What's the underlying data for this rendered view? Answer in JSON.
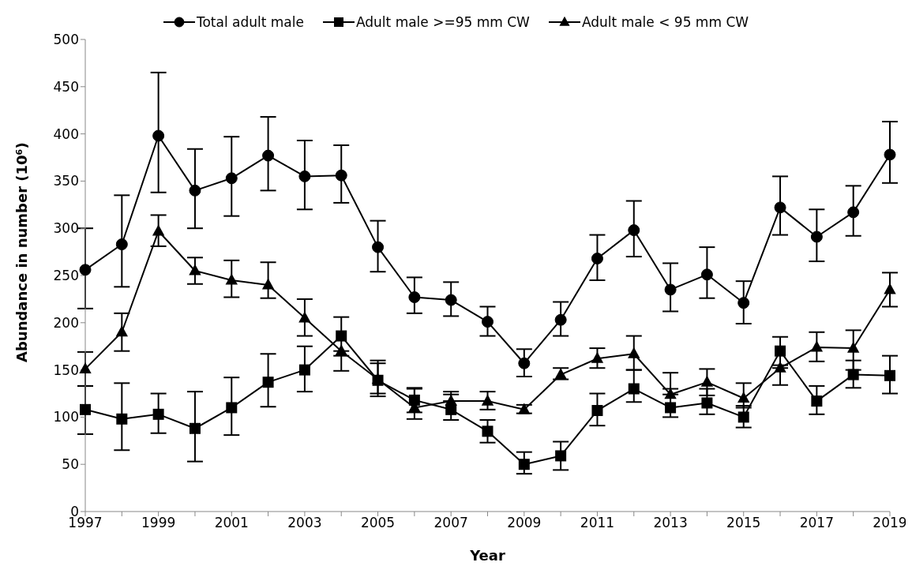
{
  "chart_data": {
    "type": "line",
    "xlabel": "Year",
    "ylabel": "Abundance in number (10⁶)",
    "categories": [
      "1997",
      null,
      "1999",
      null,
      "2001",
      null,
      "2003",
      null,
      "2005",
      null,
      "2007",
      null,
      "2009",
      null,
      "2011",
      null,
      "2013",
      null,
      "2015",
      null,
      "2017",
      null,
      "2019"
    ],
    "ylim": [
      0,
      500
    ],
    "yticks": [
      0,
      50,
      100,
      150,
      200,
      250,
      300,
      350,
      400,
      450,
      500
    ],
    "legend": "top",
    "line_style": "solid",
    "series": [
      {
        "name": "Total adult male",
        "color": "#000000",
        "marker": "circle",
        "values": [
          256,
          283,
          398,
          340,
          353,
          377,
          355,
          356,
          280,
          227,
          224,
          201,
          157,
          203,
          268,
          298,
          235,
          251,
          221,
          322,
          291,
          317,
          378
        ],
        "errors": [
          [
            215,
            300
          ],
          [
            238,
            335
          ],
          [
            338,
            465
          ],
          [
            300,
            384
          ],
          [
            313,
            397
          ],
          [
            340,
            418
          ],
          [
            320,
            393
          ],
          [
            327,
            388
          ],
          [
            254,
            308
          ],
          [
            210,
            248
          ],
          [
            207,
            243
          ],
          [
            186,
            217
          ],
          [
            143,
            172
          ],
          [
            186,
            222
          ],
          [
            245,
            293
          ],
          [
            270,
            329
          ],
          [
            212,
            263
          ],
          [
            226,
            280
          ],
          [
            199,
            244
          ],
          [
            293,
            355
          ],
          [
            265,
            320
          ],
          [
            292,
            345
          ],
          [
            348,
            413
          ]
        ]
      },
      {
        "name": "Adult male >=95 mm CW",
        "color": "#000000",
        "marker": "square",
        "values": [
          108,
          98,
          103,
          88,
          110,
          137,
          150,
          186,
          139,
          118,
          108,
          85,
          50,
          59,
          107,
          130,
          110,
          115,
          100,
          170,
          117,
          145,
          144
        ],
        "errors": [
          [
            82,
            133
          ],
          [
            65,
            136
          ],
          [
            83,
            125
          ],
          [
            53,
            127
          ],
          [
            81,
            142
          ],
          [
            111,
            167
          ],
          [
            127,
            175
          ],
          [
            165,
            206
          ],
          [
            122,
            157
          ],
          [
            105,
            131
          ],
          [
            97,
            124
          ],
          [
            73,
            97
          ],
          [
            40,
            63
          ],
          [
            44,
            74
          ],
          [
            91,
            125
          ],
          [
            116,
            150
          ],
          [
            100,
            130
          ],
          [
            103,
            130
          ],
          [
            89,
            112
          ],
          [
            155,
            185
          ],
          [
            103,
            133
          ],
          [
            131,
            160
          ],
          [
            125,
            165
          ]
        ]
      },
      {
        "name": "Adult male < 95 mm CW",
        "color": "#000000",
        "marker": "triangle",
        "values": [
          151,
          190,
          297,
          255,
          245,
          240,
          205,
          170,
          140,
          110,
          117,
          117,
          108,
          145,
          162,
          167,
          124,
          137,
          120,
          152,
          174,
          173,
          235
        ],
        "errors": [
          [
            133,
            169
          ],
          [
            170,
            210
          ],
          [
            281,
            314
          ],
          [
            241,
            269
          ],
          [
            227,
            266
          ],
          [
            226,
            264
          ],
          [
            186,
            225
          ],
          [
            149,
            170
          ],
          [
            125,
            160
          ],
          [
            98,
            130
          ],
          [
            117,
            127
          ],
          [
            108,
            127
          ],
          [
            104,
            113
          ],
          [
            140,
            152
          ],
          [
            152,
            173
          ],
          [
            150,
            186
          ],
          [
            124,
            147
          ],
          [
            123,
            151
          ],
          [
            110,
            136
          ],
          [
            134,
            152
          ],
          [
            159,
            190
          ],
          [
            150,
            192
          ],
          [
            217,
            253
          ]
        ]
      }
    ]
  }
}
